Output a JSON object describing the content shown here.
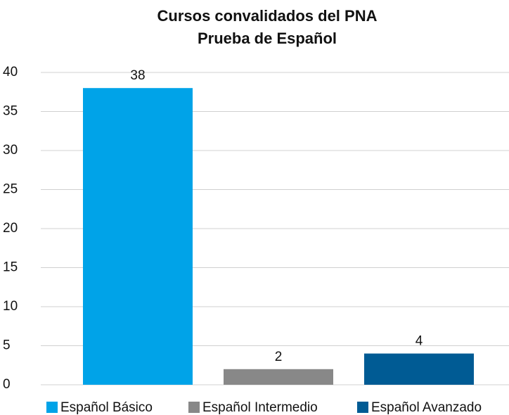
{
  "chart_data": {
    "type": "bar",
    "title": "Cursos convalidados del PNA",
    "subtitle": "Prueba de Español",
    "categories": [
      "Español Básico",
      "Español Intermedio",
      "Español Avanzado"
    ],
    "values": [
      38,
      2,
      4
    ],
    "colors": [
      "#00a3e8",
      "#888888",
      "#005b94"
    ],
    "ylim": [
      0,
      40
    ],
    "yticks": [
      0,
      5,
      10,
      15,
      20,
      25,
      30,
      35,
      40
    ],
    "grid": true,
    "legend": "bottom"
  }
}
